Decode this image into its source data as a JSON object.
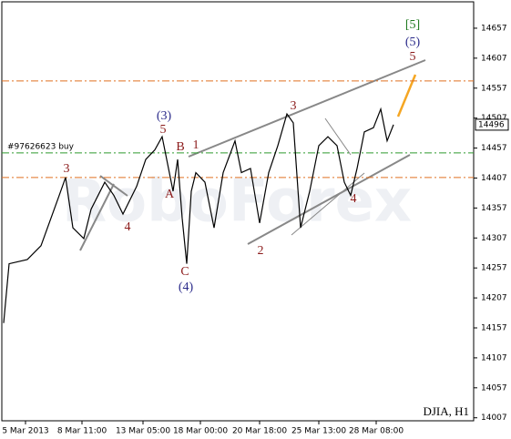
{
  "chart_data": {
    "type": "line",
    "title": "DJIA, H1",
    "watermark": "RoboForex",
    "x": [
      0.5,
      2,
      7,
      10.75,
      15.75,
      17.5,
      19.5,
      22.5,
      24.5,
      28.25,
      30.75,
      33.25,
      37,
      39.5,
      42,
      44,
      45.75,
      47,
      48.25,
      49.5,
      50.75,
      52,
      53.25,
      55.75,
      58.25,
      60.75,
      64,
      65.75,
      68.25,
      70.75,
      73.25,
      75.75,
      78.25,
      80,
      82,
      84.5,
      87,
      89.5,
      92,
      94,
      95.75,
      97.5,
      99.5,
      102,
      104,
      105.75,
      107.5
    ],
    "series": [
      {
        "name": "DJIA",
        "color": "#000000",
        "values": [
          14165,
          14264,
          14271,
          14294,
          14378,
          14408,
          14324,
          14306,
          14355,
          14400,
          14378,
          14347,
          14393,
          14438,
          14454,
          14476,
          14423,
          14385,
          14438,
          14340,
          14264,
          14385,
          14416,
          14400,
          14324,
          14416,
          14469,
          14416,
          14423,
          14332,
          14416,
          14461,
          14514,
          14499,
          14324,
          14385,
          14461,
          14476,
          14461,
          14400,
          14378,
          14423,
          14484,
          14491,
          14522,
          14469,
          14496
        ]
      }
    ],
    "last": 14496,
    "xlim": [
      0,
      129.5
    ],
    "ylim": [
      14002,
      14701
    ],
    "xticks": [
      {
        "value": 6.5,
        "label": "5 Mar 2013"
      },
      {
        "value": 22,
        "label": "8 Mar 11:00"
      },
      {
        "value": 38.75,
        "label": "13 Mar 05:00"
      },
      {
        "value": 54.5,
        "label": "18 Mar 00:00"
      },
      {
        "value": 70.75,
        "label": "20 Mar 18:00"
      },
      {
        "value": 87,
        "label": "25 Mar 13:00"
      },
      {
        "value": 102.75,
        "label": "28 Mar 08:00"
      }
    ],
    "yticks": [
      14007,
      14057,
      14107,
      14157,
      14207,
      14257,
      14307,
      14357,
      14407,
      14457,
      14507,
      14557,
      14607,
      14657
    ],
    "hlines": [
      {
        "value": 14569,
        "color": "#e07020"
      },
      {
        "value": 14408,
        "color": "#e07020"
      },
      {
        "value": 14449,
        "color": "#2e9a2e",
        "label": "#97626623 buy"
      }
    ],
    "annotations": [
      "[5]",
      "(5)",
      "5",
      "3",
      "4",
      "(3)",
      "5",
      "B",
      "1",
      "A",
      "C",
      "(4)",
      "3",
      "2",
      "4"
    ]
  }
}
